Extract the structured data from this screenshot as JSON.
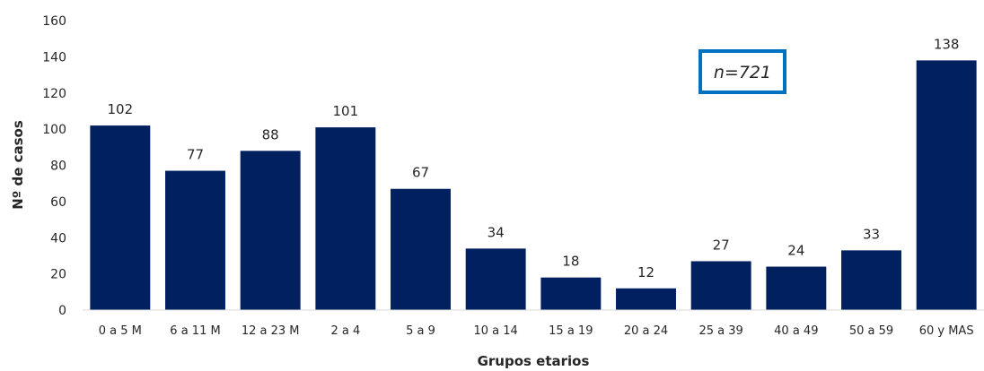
{
  "chart_data": {
    "type": "bar",
    "title": "",
    "xlabel": "Grupos etarios",
    "ylabel": "Nº de casos",
    "ylim": [
      0,
      160
    ],
    "yticks": [
      0,
      20,
      40,
      60,
      80,
      100,
      120,
      140,
      160
    ],
    "grid": false,
    "categories": [
      "0 a 5 M",
      "6 a 11 M",
      "12 a 23 M",
      "2 a 4",
      "5 a 9",
      "10 a 14",
      "15 a 19",
      "20 a 24",
      "25 a 39",
      "40 a 49",
      "50 a 59",
      "60 y MAS"
    ],
    "values": [
      102,
      77,
      88,
      101,
      67,
      34,
      18,
      12,
      27,
      24,
      33,
      138
    ],
    "bar_color": "#002060",
    "annotation": {
      "text": "n=721",
      "border_color": "#0070C0"
    }
  }
}
